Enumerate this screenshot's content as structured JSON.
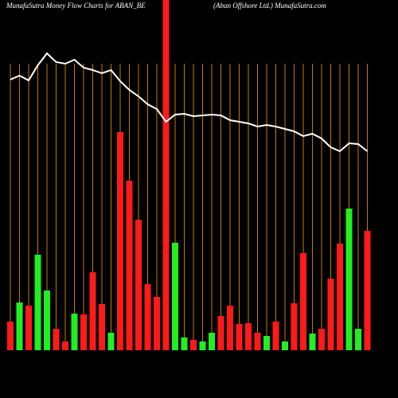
{
  "chart_data": {
    "type": "bar",
    "title": "MunafaSutra  Money Flow  Charts for ABAN_BE",
    "subtitle": "(Aban  Offshore  Ltd.) MunafaSutra.com",
    "ylim": [
      0,
      440
    ],
    "grid": true,
    "grid_color": "#c07a10",
    "values": [
      36,
      60,
      56,
      120,
      75,
      27,
      11,
      46,
      45,
      98,
      58,
      22,
      274,
      213,
      164,
      83,
      67,
      440,
      135,
      16,
      13,
      11,
      22,
      43,
      56,
      33,
      34,
      22,
      18,
      36,
      11,
      59,
      122,
      21,
      27,
      90,
      134,
      178,
      27,
      150
    ],
    "colors": [
      "#ff1a1a",
      "#22ee22",
      "#ff1a1a",
      "#22ee22",
      "#22ee22",
      "#ff1a1a",
      "#ff1a1a",
      "#22ee22",
      "#ff1a1a",
      "#ff1a1a",
      "#ff1a1a",
      "#22ee22",
      "#ff1a1a",
      "#ff1a1a",
      "#ff1a1a",
      "#ff1a1a",
      "#ff1a1a",
      "#ff1a1a",
      "#22ee22",
      "#22ee22",
      "#ff1a1a",
      "#22ee22",
      "#22ee22",
      "#ff1a1a",
      "#ff1a1a",
      "#ff1a1a",
      "#ff1a1a",
      "#ff1a1a",
      "#22ee22",
      "#ff1a1a",
      "#22ee22",
      "#ff1a1a",
      "#ff1a1a",
      "#22ee22",
      "#ff1a1a",
      "#ff1a1a",
      "#ff1a1a",
      "#22ee22",
      "#22ee22",
      "#ff1a1a"
    ],
    "line": {
      "color": "#ffffff",
      "values": [
        340,
        345,
        339,
        358,
        373,
        362,
        360,
        365,
        355,
        352,
        348,
        352,
        338,
        327,
        319,
        309,
        303,
        287,
        296,
        297,
        294,
        295,
        296,
        295,
        289,
        287,
        285,
        281,
        283,
        281,
        278,
        275,
        269,
        272,
        266,
        255,
        250,
        260,
        259,
        250
      ]
    }
  }
}
